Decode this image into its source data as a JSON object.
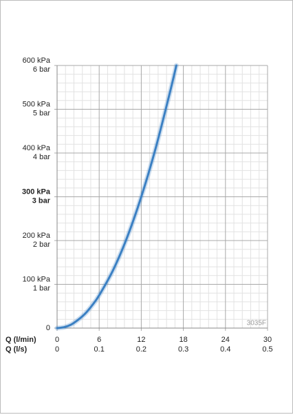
{
  "chart_data": {
    "type": "line",
    "x_label": "Q (l/min)",
    "x2_label": "Q (l/s)",
    "annotation": "3035F",
    "x": [
      0,
      1,
      2,
      3,
      4,
      5,
      6,
      8,
      10,
      12,
      14,
      16,
      17
    ],
    "series": [
      {
        "name": "3035F",
        "color": "#3b80c3",
        "values": [
          0,
          2,
          8,
          19,
          33,
          52,
          75,
          133,
          208,
          300,
          408,
          533,
          600
        ]
      }
    ],
    "xlim": [
      0,
      30
    ],
    "xticks": [
      0,
      6,
      12,
      18,
      24,
      30
    ],
    "x2lim": [
      0,
      0.5
    ],
    "x2ticks": [
      0,
      0.1,
      0.2,
      0.3,
      0.4,
      0.5
    ],
    "ylim": [
      0,
      600
    ],
    "yticks": [
      0,
      {
        "value": 100,
        "label": "100 kPa"
      },
      {
        "value": 200,
        "label": "200 kPa"
      },
      {
        "value": 300,
        "label": "300 kPa"
      },
      {
        "value": 400,
        "label": "400 kPa"
      },
      {
        "value": 500,
        "label": "500 kPa"
      },
      {
        "value": 600,
        "label": "600 kPa"
      }
    ],
    "y2lim": [
      0,
      6
    ],
    "y2ticks": [
      {
        "value": 1,
        "label": "1 bar"
      },
      {
        "value": 2,
        "label": "2 bar"
      },
      {
        "value": 3,
        "label": "3 bar"
      },
      {
        "value": 4,
        "label": "4 bar"
      },
      {
        "value": 5,
        "label": "5 bar"
      },
      {
        "value": 6,
        "label": "6 bar"
      }
    ],
    "highlight_ytick": 300,
    "grid": true,
    "minor_divisions": 5
  }
}
